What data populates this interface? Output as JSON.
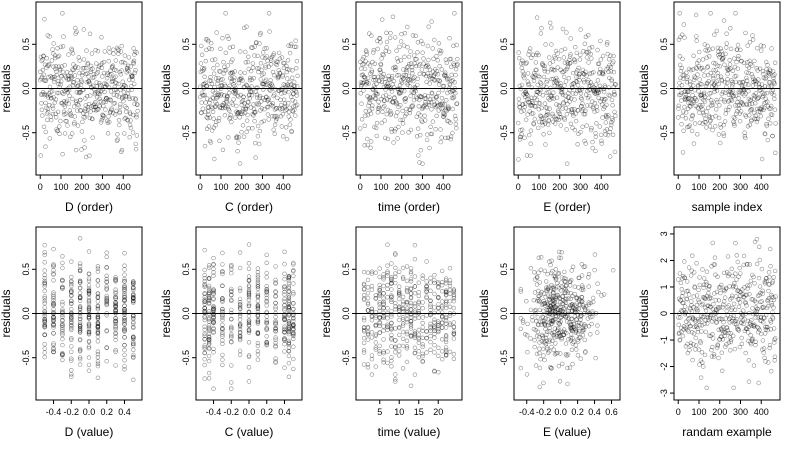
{
  "chart_data": [
    {
      "type": "scatter",
      "xlabel": "D (order)",
      "ylabel": "residuals",
      "xlim": [
        0,
        470
      ],
      "ylim": [
        -0.9,
        0.9
      ],
      "xticks": [
        0,
        100,
        200,
        300,
        400
      ],
      "yticks": [
        -0.5,
        0.0,
        0.5
      ],
      "ytick_labels": [
        "-0.5",
        "0.0",
        "0.5"
      ],
      "reference_line_y": 0,
      "x_kind": "index",
      "n": 470,
      "y_scale": 0.3,
      "y_clip": 0.85
    },
    {
      "type": "scatter",
      "xlabel": "C (order)",
      "ylabel": "residuals",
      "xlim": [
        0,
        470
      ],
      "ylim": [
        -0.9,
        0.9
      ],
      "xticks": [
        0,
        100,
        200,
        300,
        400
      ],
      "yticks": [
        -0.5,
        0.0,
        0.5
      ],
      "ytick_labels": [
        "-0.5",
        "0.0",
        "0.5"
      ],
      "reference_line_y": 0,
      "x_kind": "index",
      "n": 470,
      "y_scale": 0.3,
      "y_clip": 0.85
    },
    {
      "type": "scatter",
      "xlabel": "time (order)",
      "ylabel": "residuals",
      "xlim": [
        0,
        470
      ],
      "ylim": [
        -0.9,
        0.9
      ],
      "xticks": [
        0,
        100,
        200,
        300,
        400
      ],
      "yticks": [
        -0.5,
        0.0,
        0.5
      ],
      "ytick_labels": [
        "-0.5",
        "0.0",
        "0.5"
      ],
      "reference_line_y": 0,
      "x_kind": "index",
      "n": 470,
      "y_scale": 0.3,
      "y_clip": 0.85
    },
    {
      "type": "scatter",
      "xlabel": "E (order)",
      "ylabel": "residuals",
      "xlim": [
        0,
        470
      ],
      "ylim": [
        -0.9,
        0.9
      ],
      "xticks": [
        0,
        100,
        200,
        300,
        400
      ],
      "yticks": [
        -0.5,
        0.0,
        0.5
      ],
      "ytick_labels": [
        "-0.5",
        "0.0",
        "0.5"
      ],
      "reference_line_y": 0,
      "x_kind": "index",
      "n": 470,
      "y_scale": 0.3,
      "y_clip": 0.85
    },
    {
      "type": "scatter",
      "xlabel": "sample index",
      "ylabel": "residuals",
      "xlim": [
        0,
        470
      ],
      "ylim": [
        -0.9,
        0.9
      ],
      "xticks": [
        0,
        100,
        200,
        300,
        400
      ],
      "yticks": [
        -0.5,
        0.0,
        0.5
      ],
      "ytick_labels": [
        "-0.5",
        "0.0",
        "0.5"
      ],
      "reference_line_y": 0,
      "x_kind": "index",
      "n": 470,
      "y_scale": 0.3,
      "y_clip": 0.85
    },
    {
      "type": "scatter",
      "xlabel": "D (value)",
      "ylabel": "residuals",
      "xlim": [
        -0.55,
        0.55
      ],
      "ylim": [
        -0.9,
        0.9
      ],
      "xticks": [
        -0.4,
        -0.2,
        0.0,
        0.2,
        0.4
      ],
      "xtick_labels": [
        "-0.4",
        "-0.2",
        "0.0",
        "0.2",
        "0.4"
      ],
      "yticks": [
        -0.5,
        0.0,
        0.5
      ],
      "ytick_labels": [
        "-0.5",
        "0.0",
        "0.5"
      ],
      "reference_line_y": 0,
      "x_kind": "levels",
      "x_levels": [
        -0.5,
        -0.4,
        -0.3,
        -0.2,
        -0.1,
        0.0,
        0.1,
        0.2,
        0.3,
        0.4,
        0.5
      ],
      "n": 470,
      "y_scale": 0.3,
      "y_clip": 0.85
    },
    {
      "type": "scatter",
      "xlabel": "C (value)",
      "ylabel": "residuals",
      "xlim": [
        -0.55,
        0.55
      ],
      "ylim": [
        -0.9,
        0.9
      ],
      "xticks": [
        -0.4,
        -0.2,
        0.0,
        0.2,
        0.4
      ],
      "xtick_labels": [
        "-0.4",
        "-0.2",
        "0.0",
        "0.2",
        "0.4"
      ],
      "yticks": [
        -0.5,
        0.0,
        0.5
      ],
      "ytick_labels": [
        "-0.5",
        "0.0",
        "0.5"
      ],
      "reference_line_y": 0,
      "x_kind": "levels",
      "x_levels": [
        -0.5,
        -0.45,
        -0.4,
        -0.3,
        -0.2,
        -0.1,
        0.0,
        0.1,
        0.2,
        0.3,
        0.4,
        0.45,
        0.5
      ],
      "n": 470,
      "y_scale": 0.3,
      "y_clip": 0.85
    },
    {
      "type": "scatter",
      "xlabel": "time (value)",
      "ylabel": "residuals",
      "xlim": [
        0,
        25
      ],
      "ylim": [
        -0.9,
        0.9
      ],
      "xticks": [
        5,
        10,
        15,
        20
      ],
      "yticks": [
        -0.5,
        0.0,
        0.5
      ],
      "ytick_labels": [
        "-0.5",
        "0.0",
        "0.5"
      ],
      "reference_line_y": 0,
      "x_kind": "levels",
      "x_levels": [
        1,
        2,
        3,
        4,
        5,
        6,
        7,
        8,
        9,
        10,
        11,
        12,
        13,
        14,
        15,
        16,
        17,
        18,
        19,
        20,
        21,
        22,
        23,
        24
      ],
      "n": 470,
      "y_scale": 0.3,
      "y_clip": 0.85
    },
    {
      "type": "scatter",
      "xlabel": "E (value)",
      "ylabel": "residuals",
      "xlim": [
        -0.5,
        0.65
      ],
      "ylim": [
        -0.9,
        0.9
      ],
      "xticks": [
        -0.4,
        -0.2,
        0.0,
        0.2,
        0.4,
        0.6
      ],
      "xtick_labels": [
        "-0.4",
        "-0.2",
        "0.0",
        "0.2",
        "0.4",
        "0.6"
      ],
      "yticks": [
        -0.5,
        0.0,
        0.5
      ],
      "ytick_labels": [
        "-0.5",
        "0.0",
        "0.5"
      ],
      "reference_line_y": 0,
      "x_kind": "normal",
      "x_mean": 0.0,
      "x_sd": 0.2,
      "n": 470,
      "y_scale": 0.3,
      "y_clip": 0.85
    },
    {
      "type": "scatter",
      "xlabel": "randam example",
      "ylabel": "residuals",
      "xlim": [
        0,
        470
      ],
      "ylim": [
        -3,
        3
      ],
      "xticks": [
        0,
        100,
        200,
        300,
        400
      ],
      "yticks": [
        -3,
        -2,
        -1,
        0,
        1,
        2,
        3
      ],
      "ytick_labels": [
        "-3",
        "-2",
        "-1",
        "0",
        "1",
        "2",
        "3"
      ],
      "reference_line_y": 0,
      "x_kind": "index",
      "n": 470,
      "y_scale": 1.0,
      "y_clip": 2.8
    }
  ]
}
